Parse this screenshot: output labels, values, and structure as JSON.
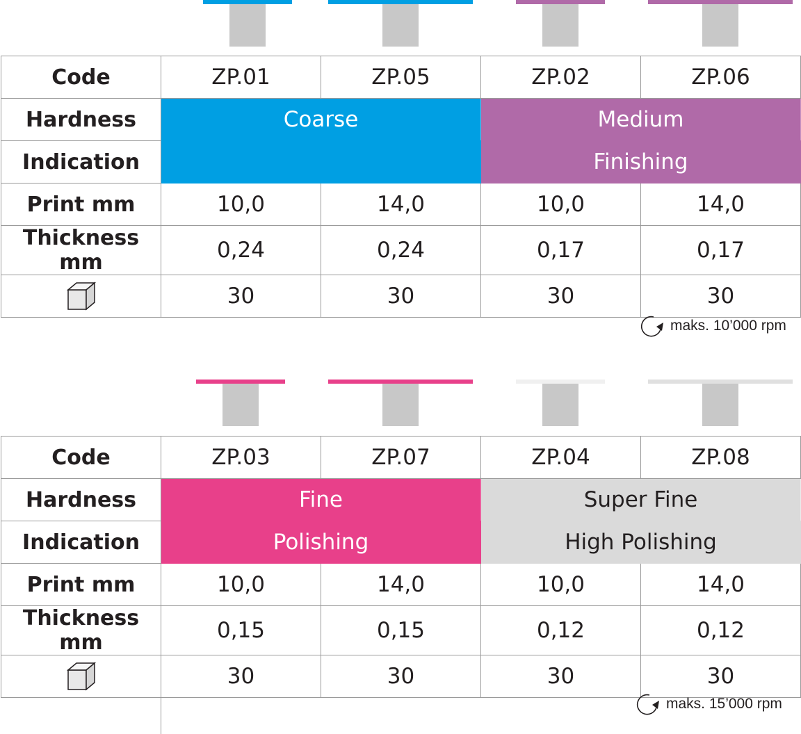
{
  "colors": {
    "coarse": "#009fe3",
    "medium": "#b06aa8",
    "fine": "#e8408a",
    "super_fine": "#dadada",
    "shank": "#c8c8c8",
    "border": "#9a9a9a"
  },
  "labels": {
    "code": "Code",
    "hardness": "Hardness",
    "indication": "Indication",
    "print": "Print mm",
    "thickness": "Thickness mm"
  },
  "icons": {
    "package": "box-icon",
    "rotation": "rotation-arrow-icon"
  },
  "table1": {
    "codes": [
      "ZP.01",
      "ZP.05",
      "ZP.02",
      "ZP.06"
    ],
    "hardness_left": "Coarse",
    "hardness_right": "Medium",
    "indication_left": "",
    "indication_right": "Finishing",
    "print": [
      "10,0",
      "14,0",
      "10,0",
      "14,0"
    ],
    "thickness": [
      "0,24",
      "0,24",
      "0,17",
      "0,17"
    ],
    "quantity": [
      "30",
      "30",
      "30",
      "30"
    ],
    "rpm": "maks. 10’000 rpm"
  },
  "table2": {
    "codes": [
      "ZP.03",
      "ZP.07",
      "ZP.04",
      "ZP.08"
    ],
    "hardness_left": "Fine",
    "hardness_right": "Super Fine",
    "indication_left": "Polishing",
    "indication_right": "High Polishing",
    "print": [
      "10,0",
      "14,0",
      "10,0",
      "14,0"
    ],
    "thickness": [
      "0,15",
      "0,15",
      "0,12",
      "0,12"
    ],
    "quantity": [
      "30",
      "30",
      "30",
      "30"
    ],
    "rpm": "maks. 15’000 rpm"
  }
}
